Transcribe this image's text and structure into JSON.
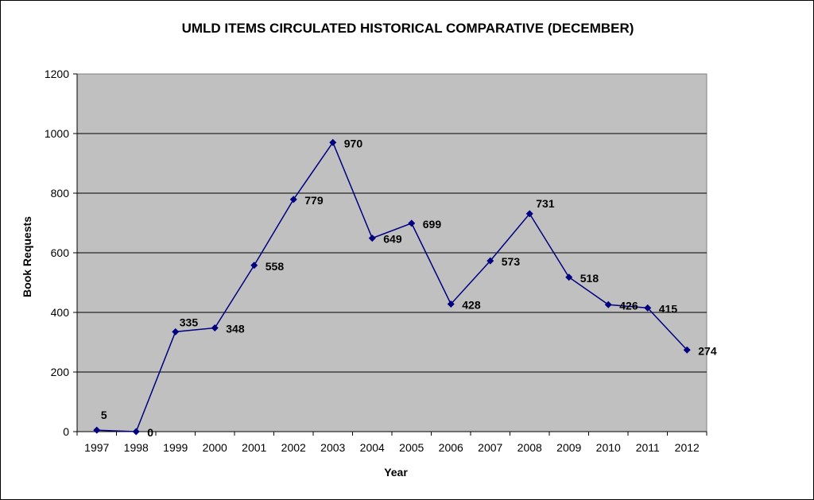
{
  "chart_data": {
    "type": "line",
    "title": "UMLD ITEMS CIRCULATED HISTORICAL COMPARATIVE (DECEMBER)",
    "xlabel": "Year",
    "ylabel": "Book Requests",
    "categories": [
      "1997",
      "1998",
      "1999",
      "2000",
      "2001",
      "2002",
      "2003",
      "2004",
      "2005",
      "2006",
      "2007",
      "2008",
      "2009",
      "2010",
      "2011",
      "2012"
    ],
    "series": [
      {
        "name": "Book Requests",
        "values": [
          5,
          0,
          335,
          348,
          558,
          779,
          970,
          649,
          699,
          428,
          573,
          731,
          518,
          426,
          415,
          274
        ],
        "color": "#000080"
      }
    ],
    "ylim": [
      0,
      1200
    ],
    "yticks": [
      0,
      200,
      400,
      600,
      800,
      1000,
      1200
    ],
    "grid": true,
    "legend": "none",
    "plot_background": "#c0c0c0"
  }
}
